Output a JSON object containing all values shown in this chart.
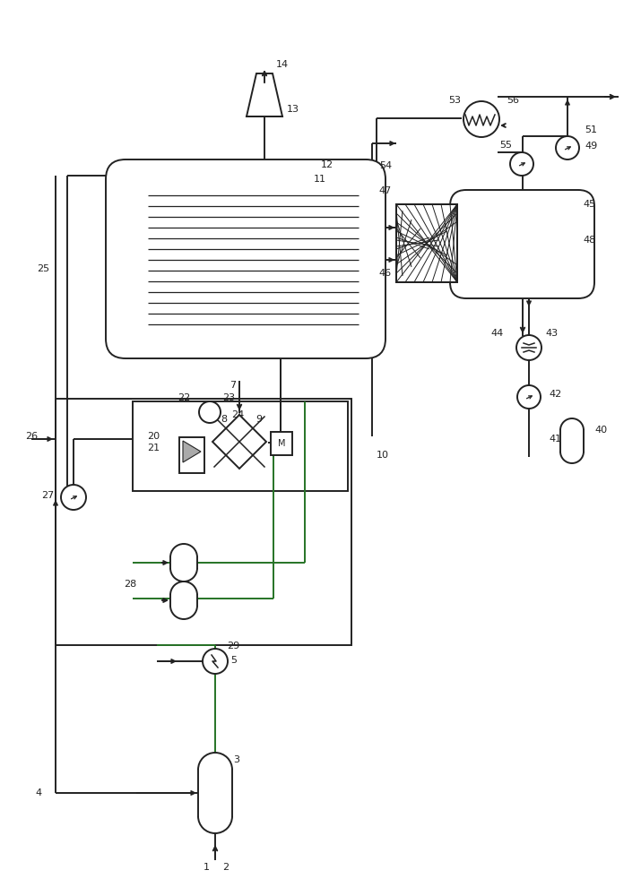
{
  "bg_color": "#ffffff",
  "line_color": "#222222",
  "green_color": "#267326",
  "fig_width": 7.15,
  "fig_height": 10.0
}
